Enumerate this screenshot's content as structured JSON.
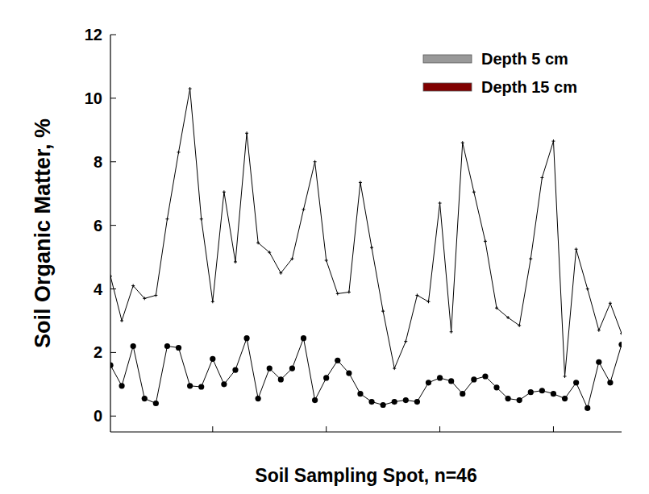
{
  "chart_data": {
    "type": "line",
    "x_label": "Soil Sampling Spot, n=46",
    "y_label": "Soil Organic Matter, %",
    "x": [
      1,
      2,
      3,
      4,
      5,
      6,
      7,
      8,
      9,
      10,
      11,
      12,
      13,
      14,
      15,
      16,
      17,
      18,
      19,
      20,
      21,
      22,
      23,
      24,
      25,
      26,
      27,
      28,
      29,
      30,
      31,
      32,
      33,
      34,
      35,
      36,
      37,
      38,
      39,
      40,
      41,
      42,
      43,
      44,
      45,
      46
    ],
    "series": [
      {
        "name": "Depth 5 cm",
        "color": "#999999",
        "marker": "plus",
        "values": [
          4.4,
          3.0,
          4.1,
          3.7,
          3.8,
          6.2,
          8.3,
          10.3,
          6.2,
          3.6,
          7.05,
          4.85,
          8.9,
          5.45,
          5.15,
          4.5,
          4.95,
          6.5,
          8.0,
          4.9,
          3.85,
          3.9,
          7.35,
          5.3,
          3.3,
          1.5,
          2.35,
          3.8,
          3.6,
          6.7,
          2.65,
          8.6,
          7.05,
          5.5,
          3.4,
          3.1,
          2.85,
          4.95,
          7.5,
          8.65,
          1.25,
          5.25,
          4.0,
          2.7,
          3.55,
          2.6
        ]
      },
      {
        "name": "Depth 15 cm",
        "color": "#800000",
        "marker": "circle",
        "values": [
          1.6,
          0.95,
          2.2,
          0.55,
          0.4,
          2.2,
          2.15,
          0.95,
          0.92,
          1.8,
          1.0,
          1.45,
          2.45,
          0.55,
          1.5,
          1.15,
          1.5,
          2.45,
          0.5,
          1.2,
          1.75,
          1.35,
          0.7,
          0.45,
          0.35,
          0.45,
          0.5,
          0.45,
          1.05,
          1.2,
          1.1,
          0.7,
          1.15,
          1.25,
          0.9,
          0.55,
          0.5,
          0.75,
          0.8,
          0.7,
          0.55,
          1.05,
          0.25,
          1.7,
          1.05,
          2.25
        ]
      }
    ],
    "xlim": [
      1,
      46
    ],
    "xticks": [
      10,
      20,
      30,
      40
    ],
    "ylim": [
      -0.5,
      12
    ],
    "yticks": [
      0,
      2,
      4,
      6,
      8,
      10,
      12
    ],
    "tick_labels": "y",
    "grid": false,
    "legend": "top-right"
  }
}
